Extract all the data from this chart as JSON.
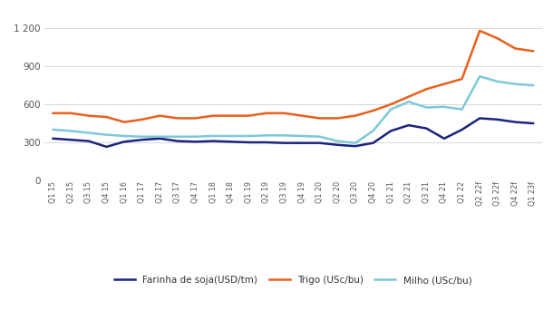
{
  "x_labels": [
    "Q1 15",
    "Q2 15",
    "Q3 15",
    "Q4 15",
    "Q1 16",
    "Q1 17",
    "Q2 17",
    "Q3 17",
    "Q4 17",
    "Q1 18",
    "Q4 18",
    "Q1 19",
    "Q2 19",
    "Q3 19",
    "Q4 19",
    "Q1 20",
    "Q2 20",
    "Q3 20",
    "Q4 20",
    "Q1 21",
    "Q2 21",
    "Q3 21",
    "Q4 21",
    "Q1 22",
    "Q2 22f",
    "Q3 22f",
    "Q4 22f",
    "Q1 23f"
  ],
  "farinha": [
    330,
    320,
    310,
    265,
    305,
    320,
    330,
    310,
    305,
    310,
    305,
    300,
    300,
    295,
    295,
    295,
    280,
    270,
    295,
    390,
    435,
    410,
    330,
    400,
    490,
    480,
    460,
    450
  ],
  "trigo": [
    530,
    530,
    510,
    500,
    460,
    480,
    510,
    490,
    490,
    510,
    510,
    510,
    530,
    530,
    510,
    490,
    490,
    510,
    550,
    600,
    660,
    720,
    760,
    800,
    1180,
    1120,
    1040,
    1020
  ],
  "milho": [
    400,
    390,
    375,
    360,
    350,
    345,
    345,
    345,
    345,
    350,
    350,
    350,
    355,
    355,
    350,
    345,
    310,
    295,
    390,
    560,
    620,
    575,
    580,
    560,
    820,
    780,
    760,
    750
  ],
  "farinha_color": "#1a237e",
  "trigo_color": "#e8601c",
  "milho_color": "#7dc8d8",
  "background_color": "#ffffff",
  "grid_color": "#d0d0d0",
  "ylim": [
    0,
    1300
  ],
  "yticks": [
    0,
    300,
    600,
    900,
    1200
  ],
  "ytick_labels": [
    "0",
    "300",
    "600",
    "900",
    "1 200"
  ],
  "legend_labels": [
    "Farinha de soja(USD/tm)",
    "Trigo (USc/bu)",
    "Milho (USc/bu)"
  ],
  "line_width": 1.8
}
